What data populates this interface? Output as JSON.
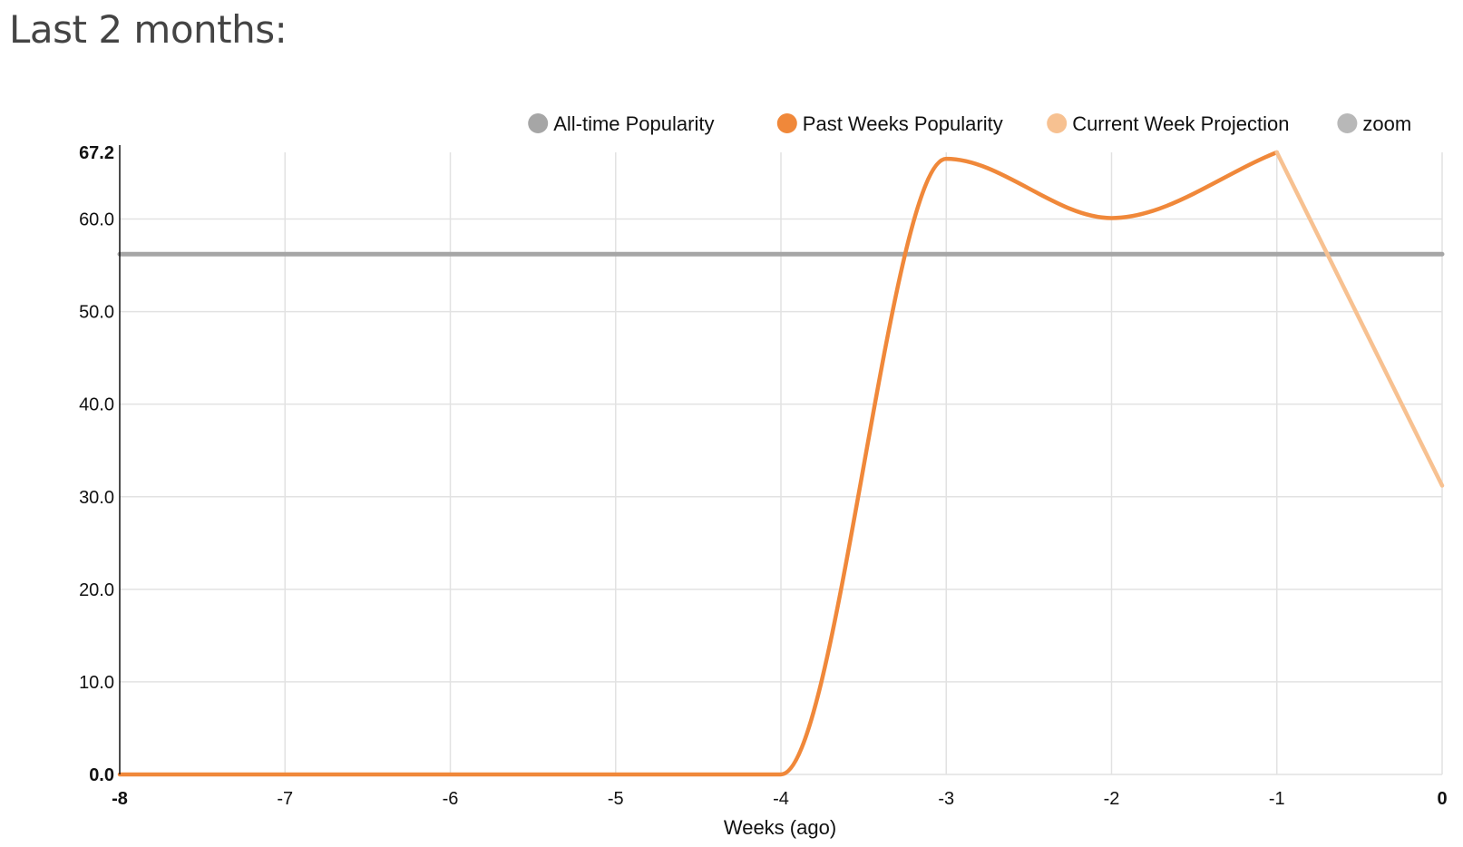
{
  "page": {
    "title": "Last 2 months:"
  },
  "chart_data": {
    "type": "line",
    "xlabel": "Weeks (ago)",
    "ylabel": "",
    "xlim": [
      -8,
      0
    ],
    "ylim": [
      0,
      67.2
    ],
    "x_ticks": [
      {
        "value": -8,
        "label": "-8",
        "bold": true
      },
      {
        "value": -7,
        "label": "-7",
        "bold": false
      },
      {
        "value": -6,
        "label": "-6",
        "bold": false
      },
      {
        "value": -5,
        "label": "-5",
        "bold": false
      },
      {
        "value": -4,
        "label": "-4",
        "bold": false
      },
      {
        "value": -3,
        "label": "-3",
        "bold": false
      },
      {
        "value": -2,
        "label": "-2",
        "bold": false
      },
      {
        "value": -1,
        "label": "-1",
        "bold": false
      },
      {
        "value": 0,
        "label": "0",
        "bold": true
      }
    ],
    "y_ticks": [
      {
        "value": 0,
        "label": "0.0",
        "bold": true
      },
      {
        "value": 10,
        "label": "10.0",
        "bold": false
      },
      {
        "value": 20,
        "label": "20.0",
        "bold": false
      },
      {
        "value": 30,
        "label": "30.0",
        "bold": false
      },
      {
        "value": 40,
        "label": "40.0",
        "bold": false
      },
      {
        "value": 50,
        "label": "50.0",
        "bold": false
      },
      {
        "value": 60,
        "label": "60.0",
        "bold": false
      },
      {
        "value": 67.2,
        "label": "67.2",
        "bold": true
      }
    ],
    "grid": true,
    "legend_position": "top-right",
    "series": [
      {
        "name": "All-time Popularity",
        "color": "#a6a6a6",
        "style": "flat",
        "x": [
          -8,
          0
        ],
        "y": [
          56.2,
          56.2
        ]
      },
      {
        "name": "Past Weeks Popularity",
        "color": "#f0883a",
        "style": "smooth",
        "x": [
          -8,
          -7,
          -6,
          -5,
          -4,
          -3,
          -2,
          -1
        ],
        "y": [
          0,
          0,
          0,
          0,
          0,
          66.5,
          60.1,
          67.2
        ]
      },
      {
        "name": "Current Week Projection",
        "color": "#f7c191",
        "style": "straight",
        "x": [
          -1,
          0
        ],
        "y": [
          67.2,
          31.2
        ]
      },
      {
        "name": "zoom",
        "color": "#b8b8b8",
        "style": "none",
        "x": [],
        "y": []
      }
    ]
  }
}
